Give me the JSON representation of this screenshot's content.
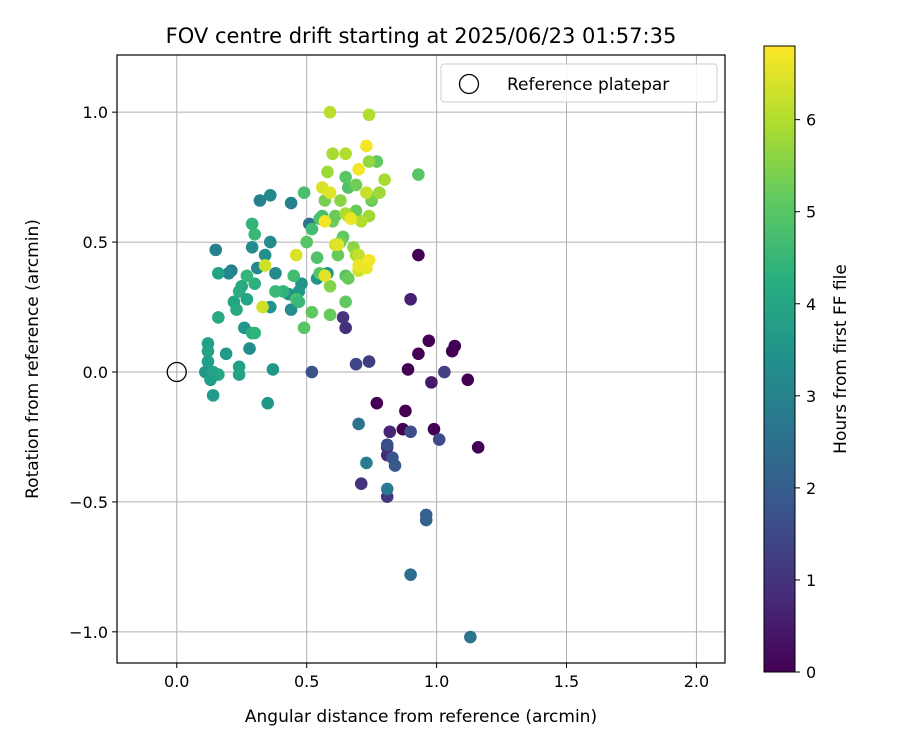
{
  "chart_data": {
    "type": "scatter",
    "title": "FOV centre drift starting at 2025/06/23 01:57:35",
    "xlabel": "Angular distance from reference (arcmin)",
    "ylabel": "Rotation from reference (arcmin)",
    "xlim": [
      -0.23,
      2.11
    ],
    "ylim": [
      -1.12,
      1.22
    ],
    "xticks": [
      0.0,
      0.5,
      1.0,
      1.5,
      2.0
    ],
    "xtick_labels": [
      "0.0",
      "0.5",
      "1.0",
      "1.5",
      "2.0"
    ],
    "yticks": [
      -1.0,
      -0.5,
      0.0,
      0.5,
      1.0
    ],
    "ytick_labels": [
      "−1.0",
      "−0.5",
      "0.0",
      "0.5",
      "1.0"
    ],
    "grid": true,
    "legend": {
      "placement": "top-right",
      "label": "Reference platepar"
    },
    "reference_point": {
      "x": 0.0,
      "y": 0.0
    },
    "colorbar": {
      "label": "Hours from first FF file",
      "min": 0,
      "max": 6.8,
      "ticks": [
        0,
        1,
        2,
        3,
        4,
        5,
        6
      ],
      "tick_labels": [
        "0",
        "1",
        "2",
        "3",
        "4",
        "5",
        "6"
      ],
      "colormap": "viridis"
    },
    "points": [
      {
        "x": 0.93,
        "y": 0.45,
        "c": 0.0
      },
      {
        "x": 1.07,
        "y": 0.1,
        "c": 0.0
      },
      {
        "x": 0.97,
        "y": 0.12,
        "c": 0.0
      },
      {
        "x": 0.93,
        "y": 0.07,
        "c": 0.0
      },
      {
        "x": 1.06,
        "y": 0.08,
        "c": 0.0
      },
      {
        "x": 1.12,
        "y": -0.03,
        "c": 0.0
      },
      {
        "x": 0.89,
        "y": 0.01,
        "c": 0.0
      },
      {
        "x": 0.77,
        "y": -0.12,
        "c": 0.0
      },
      {
        "x": 0.88,
        "y": -0.15,
        "c": 0.0
      },
      {
        "x": 0.99,
        "y": -0.22,
        "c": 0.0
      },
      {
        "x": 1.16,
        "y": -0.29,
        "c": 0.0
      },
      {
        "x": 0.87,
        "y": -0.22,
        "c": 0.0
      },
      {
        "x": 0.98,
        "y": -0.04,
        "c": 0.5
      },
      {
        "x": 0.9,
        "y": 0.28,
        "c": 0.6
      },
      {
        "x": 0.65,
        "y": 0.17,
        "c": 0.9
      },
      {
        "x": 0.64,
        "y": 0.21,
        "c": 1.0
      },
      {
        "x": 0.82,
        "y": -0.23,
        "c": 0.7
      },
      {
        "x": 0.81,
        "y": -0.29,
        "c": 1.0
      },
      {
        "x": 0.81,
        "y": -0.32,
        "c": 0.8
      },
      {
        "x": 0.71,
        "y": -0.43,
        "c": 1.0
      },
      {
        "x": 0.81,
        "y": -0.48,
        "c": 1.1
      },
      {
        "x": 1.03,
        "y": 0.0,
        "c": 1.3
      },
      {
        "x": 0.74,
        "y": 0.04,
        "c": 1.2
      },
      {
        "x": 0.69,
        "y": 0.03,
        "c": 1.4
      },
      {
        "x": 0.9,
        "y": -0.23,
        "c": 1.6
      },
      {
        "x": 1.01,
        "y": -0.26,
        "c": 1.5
      },
      {
        "x": 0.81,
        "y": -0.28,
        "c": 1.6
      },
      {
        "x": 0.83,
        "y": -0.33,
        "c": 1.8
      },
      {
        "x": 0.84,
        "y": -0.36,
        "c": 1.9
      },
      {
        "x": 0.52,
        "y": 0.0,
        "c": 1.7
      },
      {
        "x": 0.96,
        "y": -0.55,
        "c": 2.1
      },
      {
        "x": 0.96,
        "y": -0.57,
        "c": 2.1
      },
      {
        "x": 0.9,
        "y": -0.78,
        "c": 2.4
      },
      {
        "x": 1.13,
        "y": -1.02,
        "c": 2.6
      },
      {
        "x": 0.7,
        "y": -0.2,
        "c": 2.6
      },
      {
        "x": 0.73,
        "y": -0.35,
        "c": 2.9
      },
      {
        "x": 0.81,
        "y": -0.45,
        "c": 2.8
      },
      {
        "x": 0.51,
        "y": 0.57,
        "c": 2.6
      },
      {
        "x": 0.15,
        "y": 0.47,
        "c": 3.0
      },
      {
        "x": 0.21,
        "y": 0.39,
        "c": 2.9
      },
      {
        "x": 0.32,
        "y": 0.66,
        "c": 3.0
      },
      {
        "x": 0.36,
        "y": 0.68,
        "c": 3.2
      },
      {
        "x": 0.44,
        "y": 0.65,
        "c": 3.0
      },
      {
        "x": 0.31,
        "y": 0.4,
        "c": 3.2
      },
      {
        "x": 0.29,
        "y": 0.48,
        "c": 3.3
      },
      {
        "x": 0.34,
        "y": 0.45,
        "c": 3.4
      },
      {
        "x": 0.36,
        "y": 0.5,
        "c": 3.3
      },
      {
        "x": 0.2,
        "y": 0.38,
        "c": 3.1
      },
      {
        "x": 0.38,
        "y": 0.38,
        "c": 3.2
      },
      {
        "x": 0.43,
        "y": 0.3,
        "c": 3.4
      },
      {
        "x": 0.48,
        "y": 0.34,
        "c": 3.5
      },
      {
        "x": 0.44,
        "y": 0.24,
        "c": 3.3
      },
      {
        "x": 0.36,
        "y": 0.25,
        "c": 3.5
      },
      {
        "x": 0.28,
        "y": 0.09,
        "c": 3.3
      },
      {
        "x": 0.26,
        "y": 0.17,
        "c": 3.6
      },
      {
        "x": 0.35,
        "y": -0.12,
        "c": 3.6
      },
      {
        "x": 0.37,
        "y": 0.01,
        "c": 3.6
      },
      {
        "x": 0.47,
        "y": 0.31,
        "c": 3.6
      },
      {
        "x": 0.54,
        "y": 0.36,
        "c": 3.5
      },
      {
        "x": 0.58,
        "y": 0.38,
        "c": 3.7
      },
      {
        "x": 0.12,
        "y": 0.11,
        "c": 3.8
      },
      {
        "x": 0.12,
        "y": 0.08,
        "c": 3.9
      },
      {
        "x": 0.19,
        "y": 0.07,
        "c": 3.7
      },
      {
        "x": 0.12,
        "y": 0.04,
        "c": 3.8
      },
      {
        "x": 0.11,
        "y": 0.0,
        "c": 3.6
      },
      {
        "x": 0.14,
        "y": 0.0,
        "c": 3.9
      },
      {
        "x": 0.16,
        "y": -0.01,
        "c": 4.0
      },
      {
        "x": 0.13,
        "y": -0.03,
        "c": 3.8
      },
      {
        "x": 0.14,
        "y": -0.09,
        "c": 3.7
      },
      {
        "x": 0.24,
        "y": 0.02,
        "c": 3.8
      },
      {
        "x": 0.24,
        "y": -0.01,
        "c": 3.9
      },
      {
        "x": 0.16,
        "y": 0.38,
        "c": 3.9
      },
      {
        "x": 0.16,
        "y": 0.21,
        "c": 4.1
      },
      {
        "x": 0.22,
        "y": 0.27,
        "c": 4.0
      },
      {
        "x": 0.23,
        "y": 0.24,
        "c": 4.1
      },
      {
        "x": 0.24,
        "y": 0.31,
        "c": 4.2
      },
      {
        "x": 0.25,
        "y": 0.33,
        "c": 4.1
      },
      {
        "x": 0.27,
        "y": 0.28,
        "c": 4.0
      },
      {
        "x": 0.3,
        "y": 0.34,
        "c": 4.3
      },
      {
        "x": 0.29,
        "y": 0.15,
        "c": 4.2
      },
      {
        "x": 0.3,
        "y": 0.15,
        "c": 4.4
      },
      {
        "x": 0.27,
        "y": 0.37,
        "c": 4.5
      },
      {
        "x": 0.29,
        "y": 0.57,
        "c": 4.4
      },
      {
        "x": 0.3,
        "y": 0.53,
        "c": 4.6
      },
      {
        "x": 0.41,
        "y": 0.31,
        "c": 4.4
      },
      {
        "x": 0.38,
        "y": 0.31,
        "c": 4.6
      },
      {
        "x": 0.45,
        "y": 0.37,
        "c": 4.7
      },
      {
        "x": 0.46,
        "y": 0.28,
        "c": 4.8
      },
      {
        "x": 0.47,
        "y": 0.27,
        "c": 4.6
      },
      {
        "x": 0.49,
        "y": 0.69,
        "c": 4.8
      },
      {
        "x": 0.52,
        "y": 0.55,
        "c": 4.7
      },
      {
        "x": 0.55,
        "y": 0.59,
        "c": 4.9
      },
      {
        "x": 0.56,
        "y": 0.6,
        "c": 4.8
      },
      {
        "x": 0.5,
        "y": 0.5,
        "c": 5.0
      },
      {
        "x": 0.52,
        "y": 0.23,
        "c": 5.1
      },
      {
        "x": 0.49,
        "y": 0.17,
        "c": 5.0
      },
      {
        "x": 0.54,
        "y": 0.44,
        "c": 4.9
      },
      {
        "x": 0.55,
        "y": 0.38,
        "c": 5.0
      },
      {
        "x": 0.59,
        "y": 0.22,
        "c": 5.2
      },
      {
        "x": 0.65,
        "y": 0.27,
        "c": 5.1
      },
      {
        "x": 0.65,
        "y": 0.37,
        "c": 5.0
      },
      {
        "x": 0.66,
        "y": 0.36,
        "c": 5.2
      },
      {
        "x": 0.66,
        "y": 0.71,
        "c": 4.9
      },
      {
        "x": 0.65,
        "y": 0.75,
        "c": 5.0
      },
      {
        "x": 0.64,
        "y": 0.52,
        "c": 5.1
      },
      {
        "x": 0.62,
        "y": 0.45,
        "c": 5.2
      },
      {
        "x": 0.6,
        "y": 0.58,
        "c": 5.3
      },
      {
        "x": 0.61,
        "y": 0.6,
        "c": 5.2
      },
      {
        "x": 0.63,
        "y": 0.5,
        "c": 5.3
      },
      {
        "x": 0.57,
        "y": 0.66,
        "c": 5.4
      },
      {
        "x": 0.69,
        "y": 0.62,
        "c": 5.2
      },
      {
        "x": 0.69,
        "y": 0.72,
        "c": 5.3
      },
      {
        "x": 0.75,
        "y": 0.66,
        "c": 5.1
      },
      {
        "x": 0.77,
        "y": 0.81,
        "c": 5.1
      },
      {
        "x": 0.93,
        "y": 0.76,
        "c": 5.0
      },
      {
        "x": 0.75,
        "y": 0.67,
        "c": 5.4
      },
      {
        "x": 0.59,
        "y": 0.33,
        "c": 5.5
      },
      {
        "x": 0.63,
        "y": 0.66,
        "c": 5.6
      },
      {
        "x": 0.68,
        "y": 0.48,
        "c": 5.6
      },
      {
        "x": 0.74,
        "y": 0.81,
        "c": 5.7
      },
      {
        "x": 0.78,
        "y": 0.69,
        "c": 5.8
      },
      {
        "x": 0.8,
        "y": 0.74,
        "c": 5.9
      },
      {
        "x": 0.69,
        "y": 0.45,
        "c": 5.9
      },
      {
        "x": 0.74,
        "y": 0.6,
        "c": 5.8
      },
      {
        "x": 0.6,
        "y": 0.84,
        "c": 5.9
      },
      {
        "x": 0.58,
        "y": 0.77,
        "c": 5.8
      },
      {
        "x": 0.65,
        "y": 0.61,
        "c": 5.9
      },
      {
        "x": 0.66,
        "y": 0.6,
        "c": 6.0
      },
      {
        "x": 0.65,
        "y": 0.84,
        "c": 6.0
      },
      {
        "x": 0.71,
        "y": 0.58,
        "c": 6.0
      },
      {
        "x": 0.74,
        "y": 0.99,
        "c": 6.0
      },
      {
        "x": 0.59,
        "y": 1.0,
        "c": 6.1
      },
      {
        "x": 0.73,
        "y": 0.69,
        "c": 6.2
      },
      {
        "x": 0.7,
        "y": 0.45,
        "c": 6.2
      },
      {
        "x": 0.7,
        "y": 0.39,
        "c": 6.3
      },
      {
        "x": 0.33,
        "y": 0.25,
        "c": 6.3
      },
      {
        "x": 0.34,
        "y": 0.41,
        "c": 6.3
      },
      {
        "x": 0.46,
        "y": 0.45,
        "c": 6.4
      },
      {
        "x": 0.56,
        "y": 0.71,
        "c": 6.4
      },
      {
        "x": 0.61,
        "y": 0.49,
        "c": 6.4
      },
      {
        "x": 0.57,
        "y": 0.37,
        "c": 6.5
      },
      {
        "x": 0.59,
        "y": 0.69,
        "c": 6.5
      },
      {
        "x": 0.62,
        "y": 0.49,
        "c": 6.5
      },
      {
        "x": 0.67,
        "y": 0.59,
        "c": 6.6
      },
      {
        "x": 0.7,
        "y": 0.41,
        "c": 6.6
      },
      {
        "x": 0.73,
        "y": 0.4,
        "c": 6.6
      },
      {
        "x": 0.74,
        "y": 0.43,
        "c": 6.7
      },
      {
        "x": 0.73,
        "y": 0.87,
        "c": 6.7
      },
      {
        "x": 0.7,
        "y": 0.78,
        "c": 6.7
      },
      {
        "x": 0.57,
        "y": 0.58,
        "c": 6.7
      }
    ]
  }
}
